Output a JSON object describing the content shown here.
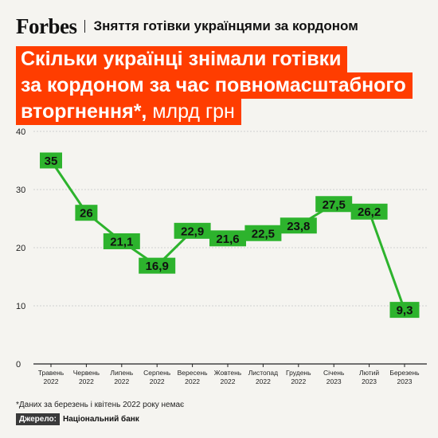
{
  "header": {
    "brand": "Forbes",
    "subtitle": "Зняття готівки українцями за кордоном"
  },
  "title": {
    "line1": "Скільки українці знімали готівки",
    "line2": "за кордоном за час повномасштабного",
    "line3_main": "вторгнення*,",
    "line3_unit": " млрд грн"
  },
  "colors": {
    "accent": "#ff3d00",
    "line": "#2db32d",
    "label_bg": "#2db32d"
  },
  "chart_data": {
    "type": "line",
    "title": "Скільки українці знімали готівки за кордоном за час повномасштабного вторгнення*, млрд грн",
    "categories": [
      [
        "Травень",
        "2022"
      ],
      [
        "Червень",
        "2022"
      ],
      [
        "Липень",
        "2022"
      ],
      [
        "Серпень",
        "2022"
      ],
      [
        "Вересень",
        "2022"
      ],
      [
        "Жовтень",
        "2022"
      ],
      [
        "Листопад",
        "2022"
      ],
      [
        "Грудень",
        "2022"
      ],
      [
        "Січень",
        "2023"
      ],
      [
        "Лютий",
        "2023"
      ],
      [
        "Березень",
        "2023"
      ]
    ],
    "values": [
      35,
      26,
      21.1,
      16.9,
      22.9,
      21.6,
      22.5,
      23.8,
      27.5,
      26.2,
      9.3
    ],
    "value_labels": [
      "35",
      "26",
      "21,1",
      "16,9",
      "22,9",
      "21,6",
      "22,5",
      "23,8",
      "27,5",
      "26,2",
      "9,3"
    ],
    "ylim": [
      0,
      40
    ],
    "yticks": [
      "0",
      "10",
      "20",
      "30",
      "40"
    ],
    "grid": true
  },
  "footnote": "*Даних за березень і квітень 2022 року немає",
  "source": {
    "label": "Джерело:",
    "value": "Національний банк"
  }
}
